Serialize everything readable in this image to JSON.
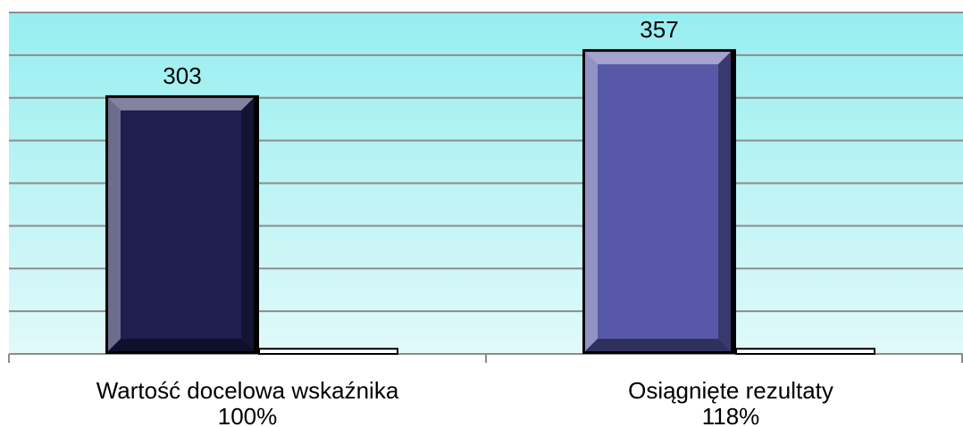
{
  "chart_data": {
    "type": "bar",
    "categories": [
      "Wartość docelowa wskaźnika",
      "Osiągnięte rezultaty"
    ],
    "category_notes": [
      "100%",
      "118%"
    ],
    "series": [
      {
        "colors": [
          "#1e1e50",
          "#5858a8"
        ],
        "values": [
          303,
          357
        ],
        "value_labels": [
          "303",
          "357"
        ]
      },
      {
        "color": "#ffffff",
        "values": [
          6,
          6
        ]
      }
    ],
    "ylim": [
      0,
      400
    ],
    "yticks": [
      0,
      50,
      100,
      150,
      200,
      250,
      300,
      350,
      400
    ],
    "grid": true
  }
}
